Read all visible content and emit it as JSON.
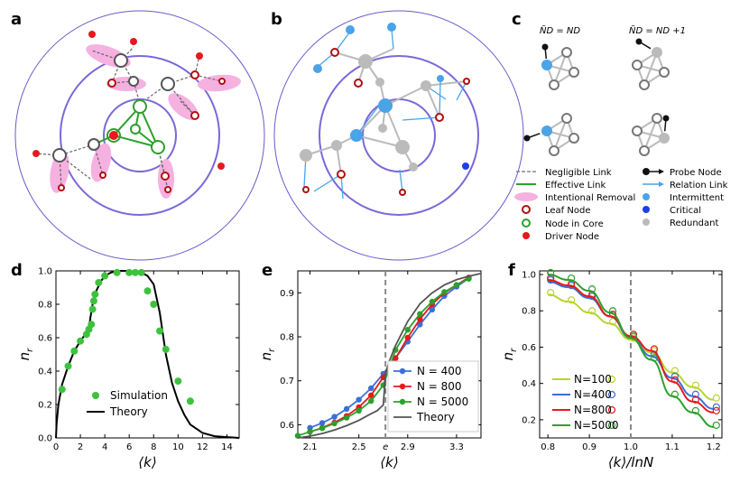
{
  "panels": {
    "a": "a",
    "b": "b",
    "c": "c",
    "d": "d",
    "e": "e",
    "f": "f"
  },
  "panel_c": {
    "col1": "ÑD = ND",
    "col2": "ÑD = ND +1",
    "legend_left": [
      "Negligible Link",
      "Effective Link",
      "Intentional Removal",
      "Leaf Node",
      "Node in Core",
      "Driver Node"
    ],
    "legend_right": [
      "Probe Node",
      "Relation Link",
      "Intermittent",
      "Critical",
      "Redundant"
    ]
  },
  "colors": {
    "blue": "#3a6fd8",
    "red": "#e41a1c",
    "green": "#2ca02c",
    "green_light": "#3ec23e",
    "lime": "#b8d430",
    "gray": "#555555",
    "pink": "#f5b1e0",
    "purple": "#7b68d8",
    "node_blue": "#4ba3e8",
    "node_gray": "#bbbbbb",
    "node_critical": "#1f3fe0"
  },
  "chart_data": [
    {
      "id": "d",
      "type": "scatter",
      "xlabel": "⟨k⟩",
      "ylabel": "n_r",
      "xlim": [
        0,
        15
      ],
      "ylim": [
        0,
        1.0
      ],
      "xticks": [
        "0",
        "2",
        "4",
        "6",
        "8",
        "10",
        "12",
        "14"
      ],
      "yticks": [
        "0.0",
        "0.2",
        "0.4",
        "0.6",
        "0.8",
        "1.0"
      ],
      "series": [
        {
          "name": "Simulation",
          "x": [
            0.5,
            1.0,
            1.5,
            2.0,
            2.5,
            2.7,
            2.9,
            3.0,
            3.1,
            3.2,
            3.5,
            4.0,
            5.0,
            6.0,
            6.5,
            7.0,
            7.5,
            8.0,
            8.5,
            9.0,
            10.0,
            11.0
          ],
          "y": [
            0.29,
            0.43,
            0.52,
            0.58,
            0.62,
            0.65,
            0.68,
            0.77,
            0.82,
            0.86,
            0.93,
            0.97,
            0.99,
            0.99,
            0.99,
            0.99,
            0.88,
            0.8,
            0.64,
            0.53,
            0.34,
            0.22
          ]
        },
        {
          "name": "Theory",
          "x": [
            0.0,
            0.05,
            0.2,
            0.5,
            1.0,
            1.5,
            2.0,
            2.5,
            2.7,
            2.8,
            3.0,
            3.3,
            3.7,
            4.0,
            4.5,
            5.0,
            6.0,
            7.0,
            7.5,
            8.0,
            8.5,
            9.0,
            9.5,
            10.0,
            10.5,
            11.0,
            12.0,
            13.0,
            14.0,
            15.0
          ],
          "y": [
            0.0,
            0.08,
            0.2,
            0.32,
            0.43,
            0.52,
            0.58,
            0.63,
            0.65,
            0.71,
            0.8,
            0.88,
            0.94,
            0.97,
            0.99,
            1.0,
            1.0,
            0.99,
            0.97,
            0.92,
            0.75,
            0.5,
            0.33,
            0.22,
            0.14,
            0.08,
            0.03,
            0.01,
            0.005,
            0.0
          ]
        }
      ]
    },
    {
      "id": "e",
      "type": "line",
      "xlabel": "⟨k⟩",
      "ylabel": "n_r",
      "xlim": [
        2.0,
        3.5
      ],
      "ylim": [
        0.57,
        0.95
      ],
      "xticks": [
        "2.1",
        "2.5",
        "e",
        "2.9",
        "3.3"
      ],
      "yticks": [
        "0.6",
        "0.7",
        "0.8",
        "0.9"
      ],
      "vline": 2.718,
      "series": [
        {
          "name": "N = 400",
          "x": [
            2.1,
            2.2,
            2.3,
            2.4,
            2.5,
            2.6,
            2.7,
            2.8,
            2.9,
            3.0,
            3.1,
            3.2,
            3.3,
            3.4
          ],
          "y": [
            0.593,
            0.604,
            0.618,
            0.636,
            0.657,
            0.683,
            0.716,
            0.752,
            0.789,
            0.828,
            0.862,
            0.893,
            0.914,
            0.933
          ]
        },
        {
          "name": "N = 800",
          "x": [
            2.1,
            2.2,
            2.3,
            2.4,
            2.5,
            2.6,
            2.7,
            2.8,
            2.9,
            3.0,
            3.1,
            3.2,
            3.3,
            3.4
          ],
          "y": [
            0.584,
            0.593,
            0.605,
            0.62,
            0.64,
            0.667,
            0.708,
            0.751,
            0.798,
            0.84,
            0.874,
            0.9,
            0.918,
            0.935
          ]
        },
        {
          "name": "N = 5000",
          "x": [
            2.0,
            2.1,
            2.2,
            2.3,
            2.4,
            2.5,
            2.6,
            2.7,
            2.8,
            2.9,
            3.0,
            3.1,
            3.2,
            3.3,
            3.4
          ],
          "y": [
            0.575,
            0.584,
            0.592,
            0.603,
            0.616,
            0.632,
            0.654,
            0.69,
            0.77,
            0.816,
            0.852,
            0.88,
            0.902,
            0.918,
            0.932
          ]
        },
        {
          "name": "Theory",
          "x": [
            2.0,
            2.1,
            2.2,
            2.3,
            2.4,
            2.5,
            2.6,
            2.65,
            2.7,
            2.72,
            2.75,
            2.8,
            2.9,
            3.0,
            3.1,
            3.2,
            3.3,
            3.4,
            3.5
          ],
          "y": [
            0.57,
            0.574,
            0.58,
            0.588,
            0.598,
            0.61,
            0.625,
            0.632,
            0.645,
            0.72,
            0.745,
            0.78,
            0.835,
            0.875,
            0.9,
            0.918,
            0.93,
            0.938,
            0.944
          ]
        }
      ]
    },
    {
      "id": "f",
      "type": "scatter",
      "xlabel": "⟨k⟩/lnN",
      "ylabel": "n_r",
      "xlim": [
        0.78,
        1.22
      ],
      "ylim": [
        0.1,
        1.02
      ],
      "xticks": [
        "0.8",
        "0.9",
        "1.0",
        "1.1",
        "1.2"
      ],
      "yticks": [
        "0.2",
        "0.4",
        "0.6",
        "0.8",
        "1.0"
      ],
      "vline": 1.0,
      "series": [
        {
          "name": "N=100",
          "x": [
            0.8,
            0.85,
            0.9,
            0.95,
            1.0,
            1.05,
            1.1,
            1.15,
            1.2
          ],
          "y": [
            0.89,
            0.85,
            0.79,
            0.73,
            0.64,
            0.57,
            0.46,
            0.38,
            0.31
          ]
        },
        {
          "name": "N=400",
          "x": [
            0.8,
            0.85,
            0.9,
            0.95,
            1.0,
            1.05,
            1.1,
            1.15,
            1.2
          ],
          "y": [
            0.96,
            0.93,
            0.87,
            0.77,
            0.65,
            0.55,
            0.43,
            0.33,
            0.26
          ]
        },
        {
          "name": "N=800",
          "x": [
            0.8,
            0.85,
            0.9,
            0.95,
            1.0,
            1.05,
            1.1,
            1.15,
            1.2
          ],
          "y": [
            0.97,
            0.94,
            0.88,
            0.77,
            0.66,
            0.58,
            0.41,
            0.3,
            0.24
          ]
        },
        {
          "name": "N=5000",
          "x": [
            0.8,
            0.85,
            0.9,
            0.95,
            1.0,
            1.05,
            1.1,
            1.15,
            1.2
          ],
          "y": [
            1.0,
            0.97,
            0.91,
            0.79,
            0.65,
            0.53,
            0.33,
            0.24,
            0.16
          ]
        }
      ]
    }
  ]
}
